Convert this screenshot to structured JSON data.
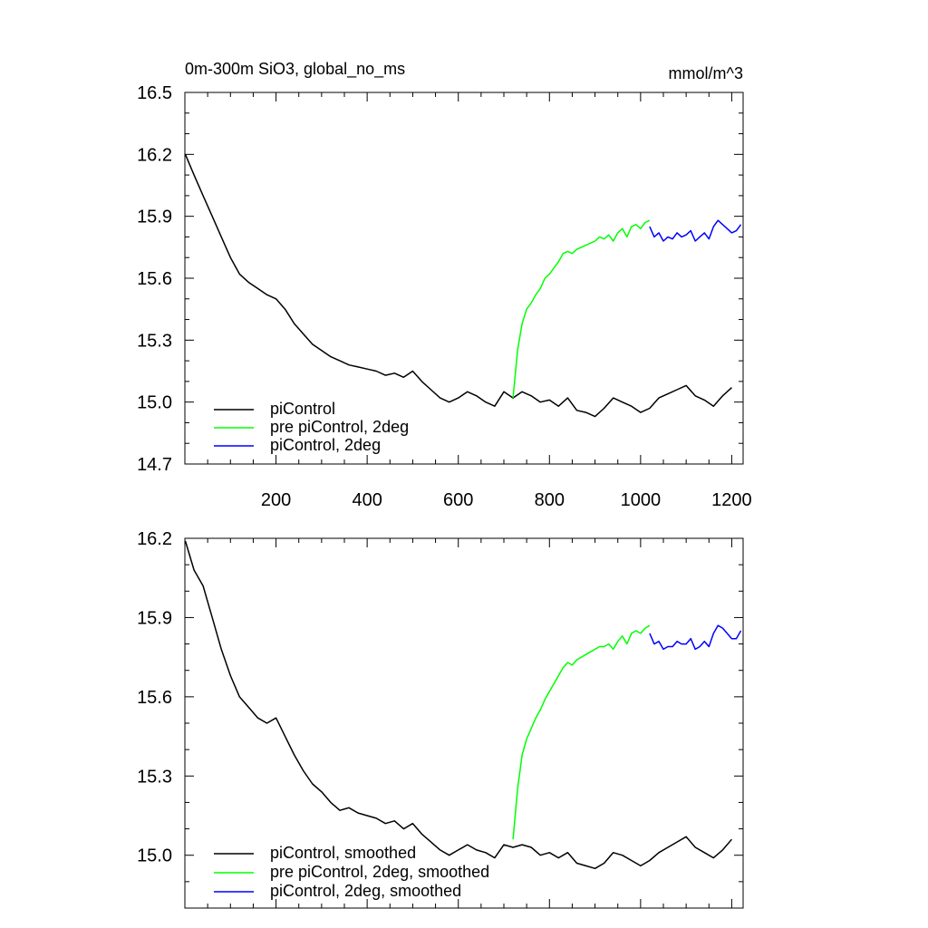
{
  "header": {
    "title": "0m-300m SiO3, global_no_ms",
    "units": "mmol/m^3"
  },
  "colors": {
    "piControl": "#000000",
    "pre_piControl_2deg": "#00ff00",
    "piControl_2deg": "#0000ff"
  },
  "chart_data": [
    {
      "type": "line",
      "panel": "top",
      "title": "0m-300m SiO3, global_no_ms",
      "units": "mmol/m^3",
      "xlim": [
        0,
        1225
      ],
      "ylim": [
        14.7,
        16.5
      ],
      "x_ticks": [
        200,
        400,
        600,
        800,
        1000,
        1200
      ],
      "x_tick_labels": [
        "200",
        "400",
        "600",
        "800",
        "1000",
        "1200"
      ],
      "y_ticks": [
        14.7,
        15.0,
        15.3,
        15.6,
        15.9,
        16.2,
        16.5
      ],
      "y_tick_labels": [
        "14.7",
        "15.0",
        "15.3",
        "15.6",
        "15.9",
        "16.2",
        "16.5"
      ],
      "legend_position": "bottom-left",
      "series": [
        {
          "name": "piControl",
          "color": "#000000",
          "x": [
            1,
            20,
            40,
            60,
            80,
            100,
            120,
            140,
            160,
            180,
            200,
            220,
            240,
            260,
            280,
            300,
            320,
            340,
            360,
            380,
            400,
            420,
            440,
            460,
            480,
            500,
            520,
            540,
            560,
            580,
            600,
            620,
            640,
            660,
            680,
            700,
            720,
            740,
            760,
            780,
            800,
            820,
            840,
            860,
            880,
            900,
            920,
            940,
            960,
            980,
            1000,
            1020,
            1040,
            1060,
            1080,
            1100,
            1120,
            1140,
            1160,
            1180,
            1200
          ],
          "y": [
            16.2,
            16.1,
            16.0,
            15.9,
            15.8,
            15.7,
            15.62,
            15.58,
            15.55,
            15.52,
            15.5,
            15.45,
            15.38,
            15.33,
            15.28,
            15.25,
            15.22,
            15.2,
            15.18,
            15.17,
            15.16,
            15.15,
            15.13,
            15.14,
            15.12,
            15.15,
            15.1,
            15.06,
            15.02,
            15.0,
            15.02,
            15.05,
            15.03,
            15.0,
            14.98,
            15.05,
            15.02,
            15.05,
            15.03,
            15.0,
            15.01,
            14.98,
            15.02,
            14.96,
            14.95,
            14.93,
            14.97,
            15.02,
            15.0,
            14.98,
            14.95,
            14.97,
            15.02,
            15.04,
            15.06,
            15.08,
            15.03,
            15.01,
            14.98,
            15.03,
            15.07
          ]
        },
        {
          "name": "pre piControl, 2deg",
          "color": "#00ff00",
          "x": [
            720,
            730,
            740,
            750,
            760,
            770,
            780,
            790,
            800,
            810,
            820,
            830,
            840,
            850,
            860,
            870,
            880,
            890,
            900,
            910,
            920,
            930,
            940,
            950,
            960,
            970,
            980,
            990,
            1000,
            1010,
            1020
          ],
          "y": [
            15.02,
            15.25,
            15.38,
            15.45,
            15.48,
            15.52,
            15.55,
            15.6,
            15.62,
            15.65,
            15.68,
            15.72,
            15.73,
            15.72,
            15.74,
            15.75,
            15.76,
            15.77,
            15.78,
            15.8,
            15.79,
            15.81,
            15.78,
            15.82,
            15.84,
            15.8,
            15.85,
            15.86,
            15.84,
            15.87,
            15.88
          ]
        },
        {
          "name": "piControl, 2deg",
          "color": "#0000ff",
          "x": [
            1020,
            1030,
            1040,
            1050,
            1060,
            1070,
            1080,
            1090,
            1100,
            1110,
            1120,
            1130,
            1140,
            1150,
            1160,
            1170,
            1180,
            1190,
            1200,
            1210,
            1220
          ],
          "y": [
            15.85,
            15.8,
            15.82,
            15.78,
            15.8,
            15.79,
            15.82,
            15.8,
            15.81,
            15.83,
            15.78,
            15.8,
            15.82,
            15.79,
            15.85,
            15.88,
            15.86,
            15.84,
            15.82,
            15.83,
            15.86
          ]
        }
      ]
    },
    {
      "type": "line",
      "panel": "bottom",
      "xlim": [
        0,
        1225
      ],
      "ylim": [
        14.8,
        16.2
      ],
      "y_ticks": [
        15.0,
        15.3,
        15.6,
        15.9,
        16.2
      ],
      "y_tick_labels": [
        "15.0",
        "15.3",
        "15.6",
        "15.9",
        "16.2"
      ],
      "legend_position": "bottom-left",
      "series": [
        {
          "name": "piControl, smoothed",
          "color": "#000000",
          "x": [
            1,
            20,
            40,
            60,
            80,
            100,
            120,
            140,
            160,
            180,
            200,
            220,
            240,
            260,
            280,
            300,
            320,
            340,
            360,
            380,
            400,
            420,
            440,
            460,
            480,
            500,
            520,
            540,
            560,
            580,
            600,
            620,
            640,
            660,
            680,
            700,
            720,
            740,
            760,
            780,
            800,
            820,
            840,
            860,
            880,
            900,
            920,
            940,
            960,
            980,
            1000,
            1020,
            1040,
            1060,
            1080,
            1100,
            1120,
            1140,
            1160,
            1180,
            1200
          ],
          "y": [
            16.19,
            16.08,
            16.02,
            15.9,
            15.78,
            15.68,
            15.6,
            15.56,
            15.52,
            15.5,
            15.52,
            15.45,
            15.38,
            15.32,
            15.27,
            15.24,
            15.2,
            15.17,
            15.18,
            15.16,
            15.15,
            15.14,
            15.12,
            15.13,
            15.1,
            15.12,
            15.08,
            15.05,
            15.02,
            15.0,
            15.02,
            15.04,
            15.02,
            15.01,
            14.99,
            15.04,
            15.03,
            15.04,
            15.03,
            15.0,
            15.01,
            14.99,
            15.01,
            14.97,
            14.96,
            14.95,
            14.97,
            15.01,
            15.0,
            14.98,
            14.96,
            14.98,
            15.01,
            15.03,
            15.05,
            15.07,
            15.03,
            15.01,
            14.99,
            15.02,
            15.06
          ]
        },
        {
          "name": "pre piControl, 2deg, smoothed",
          "color": "#00ff00",
          "x": [
            720,
            730,
            740,
            750,
            760,
            770,
            780,
            790,
            800,
            810,
            820,
            830,
            840,
            850,
            860,
            870,
            880,
            890,
            900,
            910,
            920,
            930,
            940,
            950,
            960,
            970,
            980,
            990,
            1000,
            1010,
            1020
          ],
          "y": [
            15.06,
            15.25,
            15.38,
            15.44,
            15.48,
            15.52,
            15.55,
            15.59,
            15.62,
            15.65,
            15.68,
            15.71,
            15.73,
            15.72,
            15.74,
            15.75,
            15.76,
            15.77,
            15.78,
            15.79,
            15.79,
            15.8,
            15.78,
            15.81,
            15.83,
            15.8,
            15.84,
            15.85,
            15.84,
            15.86,
            15.87
          ]
        },
        {
          "name": "piControl, 2deg, smoothed",
          "color": "#0000ff",
          "x": [
            1020,
            1030,
            1040,
            1050,
            1060,
            1070,
            1080,
            1090,
            1100,
            1110,
            1120,
            1130,
            1140,
            1150,
            1160,
            1170,
            1180,
            1190,
            1200,
            1210,
            1220
          ],
          "y": [
            15.84,
            15.8,
            15.81,
            15.78,
            15.79,
            15.79,
            15.81,
            15.8,
            15.8,
            15.82,
            15.78,
            15.79,
            15.81,
            15.79,
            15.84,
            15.87,
            15.86,
            15.84,
            15.82,
            15.82,
            15.85
          ]
        }
      ]
    }
  ]
}
